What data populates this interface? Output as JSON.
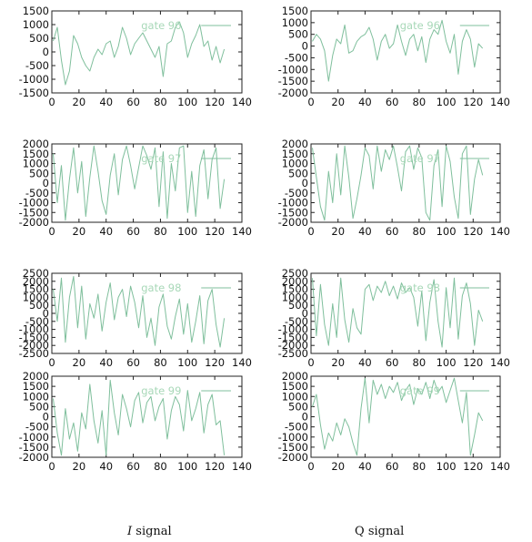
{
  "chart_data": [
    {
      "type": "line",
      "panel": "I-gate-96",
      "legend": "gate 96",
      "xlim": [
        0,
        140
      ],
      "ylim": [
        -1500,
        1500
      ],
      "xticks": [
        0,
        20,
        40,
        60,
        80,
        100,
        120,
        140
      ],
      "yticks": [
        1500,
        1000,
        500,
        0,
        -500,
        -1000,
        -1500
      ],
      "series": [
        {
          "x": [
            1,
            4,
            7,
            10,
            13,
            16,
            19,
            22,
            25,
            28,
            31,
            34,
            37,
            40,
            43,
            46,
            49,
            52,
            55,
            58,
            61,
            64,
            67,
            70,
            73,
            76,
            79,
            82,
            85,
            88,
            91,
            94,
            97,
            100,
            103,
            106,
            109,
            112,
            115,
            118,
            121,
            124,
            127
          ],
          "y": [
            400,
            900,
            -300,
            -1200,
            -700,
            600,
            300,
            -200,
            -500,
            -700,
            -200,
            100,
            -100,
            300,
            400,
            -200,
            200,
            900,
            500,
            -100,
            300,
            500,
            700,
            400,
            100,
            -200,
            200,
            -900,
            300,
            400,
            900,
            1100,
            700,
            -200,
            300,
            600,
            1000,
            200,
            400,
            -300,
            200,
            -400,
            100
          ]
        }
      ],
      "color": "#7fbf9c",
      "grid": true,
      "legend_position": "top-right"
    },
    {
      "type": "line",
      "panel": "Q-gate-96",
      "legend": "gate 96",
      "xlim": [
        0,
        140
      ],
      "ylim": [
        -2000,
        1500
      ],
      "xticks": [
        0,
        20,
        40,
        60,
        80,
        100,
        120,
        140
      ],
      "yticks": [
        1500,
        1000,
        500,
        0,
        -500,
        -1000,
        -1500,
        -2000
      ],
      "series": [
        {
          "x": [
            1,
            4,
            7,
            10,
            13,
            16,
            19,
            22,
            25,
            28,
            31,
            34,
            37,
            40,
            43,
            46,
            49,
            52,
            55,
            58,
            61,
            64,
            67,
            70,
            73,
            76,
            79,
            82,
            85,
            88,
            91,
            94,
            97,
            100,
            103,
            106,
            109,
            112,
            115,
            118,
            121,
            124,
            127
          ],
          "y": [
            200,
            500,
            300,
            -200,
            -1500,
            -400,
            300,
            100,
            900,
            -300,
            -200,
            200,
            400,
            500,
            800,
            300,
            -600,
            200,
            500,
            -100,
            100,
            900,
            200,
            -400,
            300,
            500,
            -200,
            400,
            -700,
            300,
            700,
            500,
            1100,
            200,
            -300,
            500,
            -1200,
            200,
            700,
            300,
            -900,
            100,
            -100
          ]
        }
      ],
      "color": "#7fbf9c",
      "grid": true,
      "legend_position": "top-right"
    },
    {
      "type": "line",
      "panel": "I-gate-97",
      "legend": "gate 97",
      "xlim": [
        0,
        140
      ],
      "ylim": [
        -2000,
        2000
      ],
      "xticks": [
        0,
        20,
        40,
        60,
        80,
        100,
        120,
        140
      ],
      "yticks": [
        2000,
        1500,
        1000,
        500,
        0,
        -500,
        -1000,
        -1500,
        -2000
      ],
      "series": [
        {
          "x": [
            1,
            4,
            7,
            10,
            13,
            16,
            19,
            22,
            25,
            28,
            31,
            34,
            37,
            40,
            43,
            46,
            49,
            52,
            55,
            58,
            61,
            64,
            67,
            70,
            73,
            76,
            79,
            82,
            85,
            88,
            91,
            94,
            97,
            100,
            103,
            106,
            109,
            112,
            115,
            118,
            121,
            124,
            127
          ],
          "y": [
            1500,
            -1000,
            900,
            -1900,
            200,
            1800,
            -500,
            1100,
            -1700,
            300,
            1900,
            600,
            -900,
            -1600,
            400,
            1500,
            -600,
            1200,
            1900,
            900,
            -300,
            800,
            1900,
            1400,
            700,
            1800,
            -1200,
            1600,
            -1800,
            1000,
            -400,
            1800,
            1900,
            -1500,
            600,
            -1700,
            900,
            1700,
            -800,
            1200,
            1800,
            -1300,
            200
          ]
        }
      ],
      "color": "#7fbf9c",
      "grid": true,
      "legend_position": "top-right"
    },
    {
      "type": "line",
      "panel": "Q-gate-97",
      "legend": "gate 97",
      "xlim": [
        0,
        140
      ],
      "ylim": [
        -2000,
        2000
      ],
      "xticks": [
        0,
        20,
        40,
        60,
        80,
        100,
        120,
        140
      ],
      "yticks": [
        2000,
        1500,
        1000,
        500,
        0,
        -500,
        -1000,
        -1500,
        -2000
      ],
      "series": [
        {
          "x": [
            1,
            4,
            7,
            10,
            13,
            16,
            19,
            22,
            25,
            28,
            31,
            34,
            37,
            40,
            43,
            46,
            49,
            52,
            55,
            58,
            61,
            64,
            67,
            70,
            73,
            76,
            79,
            82,
            85,
            88,
            91,
            94,
            97,
            100,
            103,
            106,
            109,
            112,
            115,
            118,
            121,
            124,
            127
          ],
          "y": [
            1800,
            300,
            -1200,
            -1900,
            600,
            -1000,
            1500,
            -600,
            1900,
            300,
            -1800,
            -800,
            400,
            1800,
            1400,
            -300,
            1900,
            600,
            1700,
            1200,
            1900,
            800,
            -400,
            1600,
            1900,
            700,
            1800,
            1300,
            -1500,
            -1900,
            900,
            1700,
            -1200,
            1900,
            1100,
            -700,
            -1800,
            1500,
            1900,
            -1600,
            200,
            1200,
            400
          ]
        }
      ],
      "color": "#7fbf9c",
      "grid": true,
      "legend_position": "top-right"
    },
    {
      "type": "line",
      "panel": "I-gate-98",
      "legend": "gate 98",
      "xlim": [
        0,
        140
      ],
      "ylim": [
        -2500,
        2500
      ],
      "xticks": [
        0,
        20,
        40,
        60,
        80,
        100,
        120,
        140
      ],
      "yticks": [
        2500,
        2000,
        1500,
        1000,
        500,
        0,
        -500,
        -1000,
        -1500,
        -2000,
        -2500
      ],
      "series": [
        {
          "x": [
            1,
            4,
            7,
            10,
            13,
            16,
            19,
            22,
            25,
            28,
            31,
            34,
            37,
            40,
            43,
            46,
            49,
            52,
            55,
            58,
            61,
            64,
            67,
            70,
            73,
            76,
            79,
            82,
            85,
            88,
            91,
            94,
            97,
            100,
            103,
            106,
            109,
            112,
            115,
            118,
            121,
            124,
            127
          ],
          "y": [
            1500,
            -500,
            2200,
            -1800,
            1000,
            2300,
            -900,
            1700,
            -1600,
            600,
            -300,
            1200,
            -1100,
            700,
            1900,
            -400,
            1000,
            1500,
            -200,
            1700,
            700,
            -900,
            1100,
            -1500,
            -300,
            -2000,
            400,
            1200,
            -800,
            -1600,
            -200,
            900,
            -1300,
            600,
            -1800,
            -500,
            1100,
            -1900,
            800,
            1500,
            -700,
            -2100,
            -300
          ]
        }
      ],
      "color": "#7fbf9c",
      "grid": true,
      "legend_position": "top-right"
    },
    {
      "type": "line",
      "panel": "Q-gate-98",
      "legend": "gate 98",
      "xlim": [
        0,
        140
      ],
      "ylim": [
        -2500,
        2500
      ],
      "xticks": [
        0,
        20,
        40,
        60,
        80,
        100,
        120,
        140
      ],
      "yticks": [
        2500,
        2000,
        1500,
        1000,
        500,
        0,
        -500,
        -1000,
        -1500,
        -2000,
        -2500
      ],
      "series": [
        {
          "x": [
            1,
            4,
            7,
            10,
            13,
            16,
            19,
            22,
            25,
            28,
            31,
            34,
            37,
            40,
            43,
            46,
            49,
            52,
            55,
            58,
            61,
            64,
            67,
            70,
            73,
            76,
            79,
            82,
            85,
            88,
            91,
            94,
            97,
            100,
            103,
            106,
            109,
            112,
            115,
            118,
            121,
            124,
            127
          ],
          "y": [
            2200,
            -1400,
            1800,
            -700,
            -2000,
            600,
            -1500,
            2200,
            -400,
            -1800,
            300,
            -900,
            -1300,
            1500,
            1800,
            800,
            1700,
            1300,
            2000,
            1100,
            1700,
            900,
            1900,
            1300,
            1600,
            1000,
            -800,
            1400,
            -1700,
            700,
            2100,
            -500,
            -2100,
            1600,
            -900,
            2200,
            -1600,
            1100,
            1900,
            600,
            -2000,
            200,
            -500
          ]
        }
      ],
      "color": "#7fbf9c",
      "grid": true,
      "legend_position": "top-right"
    },
    {
      "type": "line",
      "panel": "I-gate-99",
      "legend": "gate 99",
      "xlim": [
        0,
        140
      ],
      "ylim": [
        -2000,
        2000
      ],
      "xticks": [
        0,
        20,
        40,
        60,
        80,
        100,
        120,
        140
      ],
      "yticks": [
        2000,
        1500,
        1000,
        500,
        0,
        -500,
        -1000,
        -1500,
        -2000
      ],
      "series": [
        {
          "x": [
            1,
            4,
            7,
            10,
            13,
            16,
            19,
            22,
            25,
            28,
            31,
            34,
            37,
            40,
            43,
            46,
            49,
            52,
            55,
            58,
            61,
            64,
            67,
            70,
            73,
            76,
            79,
            82,
            85,
            88,
            91,
            94,
            97,
            100,
            103,
            106,
            109,
            112,
            115,
            118,
            121,
            124,
            127
          ],
          "y": [
            900,
            -800,
            -1900,
            400,
            -1100,
            -300,
            -1700,
            200,
            -600,
            1600,
            -200,
            -1300,
            300,
            -1900,
            1800,
            200,
            -900,
            1100,
            400,
            -500,
            800,
            1200,
            -300,
            700,
            1000,
            -200,
            500,
            900,
            -1100,
            300,
            1000,
            600,
            -700,
            1300,
            -200,
            400,
            1200,
            -800,
            600,
            1100,
            -400,
            -200,
            -1900
          ]
        }
      ],
      "color": "#7fbf9c",
      "grid": true,
      "legend_position": "top-right"
    },
    {
      "type": "line",
      "panel": "Q-gate-99",
      "legend": "gate 99",
      "xlim": [
        0,
        140
      ],
      "ylim": [
        -2000,
        2000
      ],
      "xticks": [
        0,
        20,
        40,
        60,
        80,
        100,
        120,
        140
      ],
      "yticks": [
        2000,
        1500,
        1000,
        500,
        0,
        -500,
        -1000,
        -1500,
        -2000
      ],
      "series": [
        {
          "x": [
            1,
            4,
            7,
            10,
            13,
            16,
            19,
            22,
            25,
            28,
            31,
            34,
            37,
            40,
            43,
            46,
            49,
            52,
            55,
            58,
            61,
            64,
            67,
            70,
            73,
            76,
            79,
            82,
            85,
            88,
            91,
            94,
            97,
            100,
            103,
            106,
            109,
            112,
            115,
            118,
            121,
            124,
            127
          ],
          "y": [
            500,
            1100,
            -400,
            -1600,
            -800,
            -1200,
            -300,
            -900,
            -100,
            -500,
            -1300,
            -1900,
            400,
            1900,
            -300,
            1800,
            1100,
            1600,
            900,
            1500,
            1200,
            1700,
            800,
            1300,
            1600,
            600,
            1400,
            1100,
            1700,
            900,
            1800,
            1200,
            1500,
            700,
            1300,
            1900,
            800,
            -300,
            1200,
            -1900,
            -900,
            200,
            -200
          ]
        }
      ],
      "color": "#7fbf9c",
      "grid": true,
      "legend_position": "top-right"
    }
  ],
  "captions": {
    "i": {
      "symbol": "I",
      "text": "signal"
    },
    "q": {
      "symbol": "Q",
      "text": "signal"
    }
  }
}
